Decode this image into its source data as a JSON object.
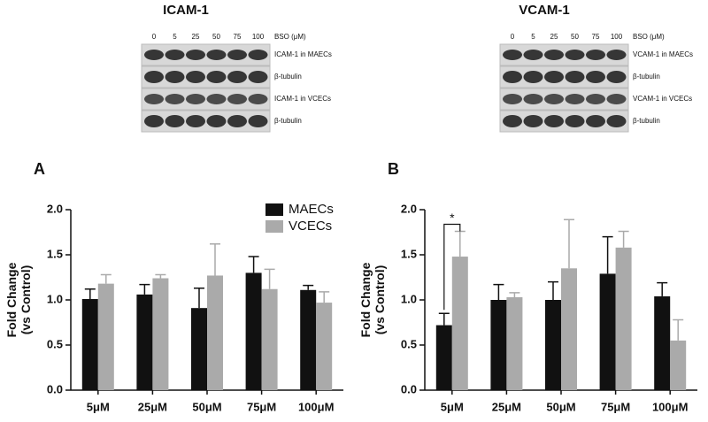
{
  "blots": [
    {
      "title": "ICAM-1",
      "dose_label": "BSO (μM)",
      "doses": [
        "0",
        "5",
        "25",
        "50",
        "75",
        "100"
      ],
      "rows": [
        "ICAM-1 in MAECs",
        "β-tubulin",
        "ICAM-1 in VCECs",
        "β-tubulin"
      ]
    },
    {
      "title": "VCAM-1",
      "dose_label": "BSO (μM)",
      "doses": [
        "0",
        "5",
        "25",
        "50",
        "75",
        "100"
      ],
      "rows": [
        "VCAM-1 in MAECs",
        "β-tubulin",
        "VCAM-1 in VCECs",
        "β-tubulin"
      ]
    }
  ],
  "chart_data": [
    {
      "type": "bar",
      "panel": "A",
      "ylabel": [
        "Fold Change",
        "(vs Control)"
      ],
      "categories": [
        "5μM",
        "25μM",
        "50μM",
        "75μM",
        "100μM"
      ],
      "series": [
        {
          "name": "MAECs",
          "color": "#111111",
          "values": [
            1.01,
            1.06,
            0.91,
            1.3,
            1.11
          ],
          "errors": [
            0.11,
            0.11,
            0.22,
            0.18,
            0.05
          ]
        },
        {
          "name": "VCECs",
          "color": "#aaaaaa",
          "values": [
            1.18,
            1.24,
            1.27,
            1.12,
            0.97
          ],
          "errors": [
            0.1,
            0.04,
            0.35,
            0.22,
            0.12
          ]
        }
      ],
      "ylim": [
        0,
        2
      ],
      "yticks": [
        {
          "value": 0,
          "label": "0.0"
        },
        {
          "value": 0.5,
          "label": "0.5"
        },
        {
          "value": 1,
          "label": "1.0"
        },
        {
          "value": 1.5,
          "label": "1.5"
        },
        {
          "value": 2,
          "label": "2.0"
        }
      ],
      "legend": "top"
    },
    {
      "type": "bar",
      "panel": "B",
      "ylabel": [
        "Fold Change",
        "(vs Control)"
      ],
      "categories": [
        "5μM",
        "25μM",
        "50μM",
        "75μM",
        "100μM"
      ],
      "series": [
        {
          "name": "MAECs",
          "color": "#111111",
          "values": [
            0.72,
            1.0,
            1.0,
            1.29,
            1.04
          ],
          "errors": [
            0.13,
            0.17,
            0.2,
            0.41,
            0.15
          ]
        },
        {
          "name": "VCECs",
          "color": "#aaaaaa",
          "values": [
            1.48,
            1.03,
            1.35,
            1.58,
            0.55
          ],
          "errors": [
            0.28,
            0.05,
            0.54,
            0.18,
            0.23
          ]
        }
      ],
      "ylim": [
        0,
        2
      ],
      "yticks": [
        {
          "value": 0,
          "label": "0.0"
        },
        {
          "value": 0.5,
          "label": "0.5"
        },
        {
          "value": 1,
          "label": "1.0"
        },
        {
          "value": 1.5,
          "label": "1.5"
        },
        {
          "value": 2,
          "label": "2.0"
        }
      ],
      "annotation": "*"
    }
  ]
}
